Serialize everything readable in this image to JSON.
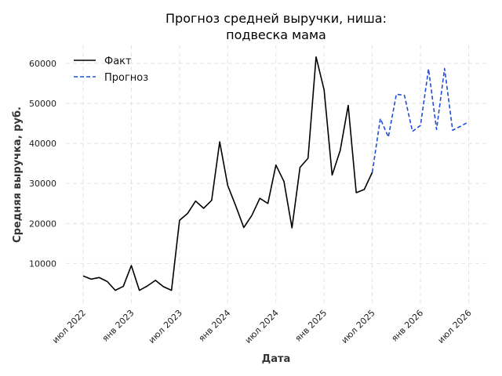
{
  "chart_data": {
    "type": "line",
    "title_line1": "Прогноз средней выручки, ниша:",
    "title_line2": "подвеска мама",
    "xlabel": "Дата",
    "ylabel": "Средняя выручка, руб.",
    "ylim": [
      0,
      65000
    ],
    "y_ticks": [
      10000,
      20000,
      30000,
      40000,
      50000,
      60000
    ],
    "x_ticks": [
      {
        "date": "2022-07",
        "label": "июл 2022"
      },
      {
        "date": "2023-01",
        "label": "янв 2023"
      },
      {
        "date": "2023-07",
        "label": "июл 2023"
      },
      {
        "date": "2024-01",
        "label": "янв 2024"
      },
      {
        "date": "2024-07",
        "label": "июл 2024"
      },
      {
        "date": "2025-01",
        "label": "янв 2025"
      },
      {
        "date": "2025-07",
        "label": "июл 2025"
      },
      {
        "date": "2026-01",
        "label": "янв 2026"
      },
      {
        "date": "2026-07",
        "label": "июл 2026"
      }
    ],
    "grid": true,
    "legend_position": "top-left",
    "series": [
      {
        "name": "Факт",
        "color": "#000000",
        "style": "solid",
        "x": [
          "2022-07",
          "2022-08",
          "2022-09",
          "2022-10",
          "2022-11",
          "2022-12",
          "2023-01",
          "2023-02",
          "2023-03",
          "2023-04",
          "2023-05",
          "2023-06",
          "2023-07",
          "2023-08",
          "2023-09",
          "2023-10",
          "2023-11",
          "2023-12",
          "2024-01",
          "2024-02",
          "2024-03",
          "2024-04",
          "2024-05",
          "2024-06",
          "2024-07",
          "2024-08",
          "2024-09",
          "2024-10",
          "2024-11",
          "2024-12",
          "2025-01",
          "2025-02",
          "2025-03",
          "2025-04",
          "2025-05",
          "2025-06",
          "2025-07"
        ],
        "values": [
          6900,
          6100,
          6500,
          5500,
          3300,
          4300,
          9500,
          3300,
          4400,
          5800,
          4200,
          3300,
          20800,
          22500,
          25600,
          23800,
          25800,
          40400,
          29500,
          24400,
          19000,
          22000,
          26300,
          25000,
          34600,
          30500,
          18900,
          34000,
          36300,
          61600,
          53400,
          32100,
          38200,
          49500,
          27700,
          28500,
          32800
        ]
      },
      {
        "name": "Прогноз",
        "color": "#1f4fd8",
        "style": "dashed",
        "x": [
          "2025-07",
          "2025-08",
          "2025-09",
          "2025-10",
          "2025-11",
          "2025-12",
          "2026-01",
          "2026-02",
          "2026-03",
          "2026-04",
          "2026-05",
          "2026-06",
          "2026-07"
        ],
        "values": [
          32800,
          46200,
          41600,
          52300,
          52000,
          43000,
          44500,
          58600,
          43500,
          58700,
          43300,
          44300,
          45400
        ]
      }
    ]
  }
}
